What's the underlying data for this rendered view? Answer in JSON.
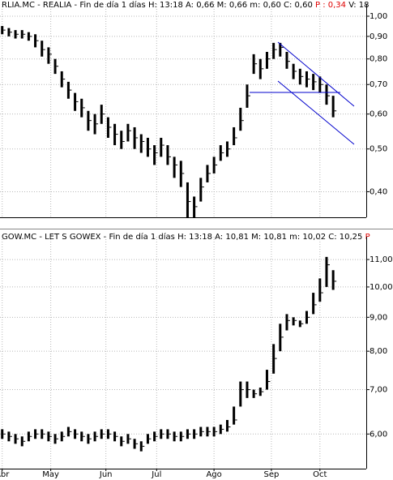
{
  "chart_data": [
    {
      "type": "ohlc",
      "header": "RLIA.MC - REALIA - Fin de día 1 días H: 13:18 A: 0,66 M: 0,66 m: 0,60 C: 0,60",
      "header_highlight": "P : 0,34",
      "header_tail": "V: 18",
      "log_scale": true,
      "grid": true,
      "color": "#000000",
      "highlight_color": "#e00000",
      "trend_color": "#0000cc",
      "show_xtick_labels": false,
      "x": [
        0,
        3,
        6,
        9,
        12,
        15,
        18,
        21,
        24,
        27,
        30,
        33,
        36,
        39,
        42,
        45,
        48,
        51,
        54,
        57,
        60,
        63,
        66,
        69,
        72,
        75,
        78,
        81,
        84,
        87,
        90,
        93,
        96,
        99,
        102,
        105,
        108,
        111,
        114,
        117,
        120,
        123,
        126,
        129,
        132,
        135,
        138,
        141,
        144,
        147,
        150
      ],
      "high": [
        0.95,
        0.94,
        0.93,
        0.93,
        0.92,
        0.91,
        0.88,
        0.85,
        0.8,
        0.75,
        0.71,
        0.67,
        0.65,
        0.61,
        0.6,
        0.63,
        0.59,
        0.57,
        0.55,
        0.57,
        0.56,
        0.54,
        0.53,
        0.51,
        0.53,
        0.51,
        0.48,
        0.47,
        0.42,
        0.39,
        0.43,
        0.46,
        0.48,
        0.51,
        0.52,
        0.56,
        0.62,
        0.7,
        0.82,
        0.8,
        0.83,
        0.87,
        0.87,
        0.83,
        0.78,
        0.76,
        0.75,
        0.74,
        0.73,
        0.7,
        0.66
      ],
      "low": [
        0.91,
        0.9,
        0.89,
        0.89,
        0.88,
        0.85,
        0.81,
        0.78,
        0.74,
        0.69,
        0.65,
        0.61,
        0.59,
        0.55,
        0.54,
        0.57,
        0.53,
        0.51,
        0.5,
        0.52,
        0.5,
        0.49,
        0.48,
        0.46,
        0.48,
        0.46,
        0.43,
        0.41,
        0.35,
        0.35,
        0.38,
        0.42,
        0.44,
        0.47,
        0.48,
        0.51,
        0.55,
        0.62,
        0.74,
        0.72,
        0.76,
        0.8,
        0.81,
        0.76,
        0.72,
        0.7,
        0.69,
        0.68,
        0.67,
        0.63,
        0.59
      ],
      "close": [
        0.93,
        0.92,
        0.91,
        0.91,
        0.9,
        0.88,
        0.84,
        0.82,
        0.77,
        0.72,
        0.68,
        0.64,
        0.62,
        0.58,
        0.57,
        0.6,
        0.56,
        0.54,
        0.52,
        0.55,
        0.53,
        0.52,
        0.5,
        0.49,
        0.51,
        0.48,
        0.46,
        0.44,
        0.38,
        0.37,
        0.41,
        0.44,
        0.46,
        0.49,
        0.5,
        0.53,
        0.58,
        0.66,
        0.78,
        0.76,
        0.8,
        0.84,
        0.85,
        0.79,
        0.75,
        0.73,
        0.72,
        0.71,
        0.7,
        0.66,
        0.61
      ],
      "xlim": [
        -1,
        165
      ],
      "xticks": [
        0,
        22,
        47,
        70,
        96,
        122,
        144
      ],
      "ylim": [
        0.35,
        1.03
      ],
      "yticks": [
        {
          "value": 1.0,
          "label": "1,00"
        },
        {
          "value": 0.9,
          "label": "0,90"
        },
        {
          "value": 0.8,
          "label": "0,80"
        },
        {
          "value": 0.7,
          "label": "0,70"
        },
        {
          "value": 0.6,
          "label": "0,60"
        },
        {
          "value": 0.5,
          "label": "0,50"
        },
        {
          "value": 0.4,
          "label": "0,40"
        }
      ]
    },
    {
      "type": "ohlc",
      "header": "GOW.MC - LET S GOWEX - Fin de día 1 días H: 13:18 A: 10,81 M: 10,81 m: 10,02 C: 10,25",
      "header_highlight": "P",
      "log_scale": true,
      "grid": true,
      "color": "#000000",
      "highlight_color": "#e00000",
      "show_xtick_labels": true,
      "x": [
        0,
        3,
        6,
        9,
        12,
        15,
        18,
        21,
        24,
        27,
        30,
        33,
        36,
        39,
        42,
        45,
        48,
        51,
        54,
        57,
        60,
        63,
        66,
        69,
        72,
        75,
        78,
        81,
        84,
        87,
        90,
        93,
        96,
        99,
        102,
        105,
        108,
        111,
        114,
        117,
        120,
        123,
        126,
        129,
        132,
        135,
        138,
        141,
        144,
        147,
        150
      ],
      "high": [
        6.1,
        6.05,
        6.0,
        5.95,
        6.05,
        6.1,
        6.1,
        6.05,
        6.0,
        6.05,
        6.15,
        6.1,
        6.05,
        6.0,
        6.05,
        6.1,
        6.1,
        6.05,
        5.95,
        6.0,
        5.9,
        5.85,
        6.0,
        6.05,
        6.1,
        6.1,
        6.05,
        6.05,
        6.1,
        6.1,
        6.15,
        6.15,
        6.15,
        6.2,
        6.3,
        6.6,
        7.2,
        7.2,
        7.0,
        7.05,
        7.5,
        8.2,
        8.8,
        9.1,
        9.0,
        8.9,
        9.2,
        9.8,
        10.3,
        11.1,
        10.6
      ],
      "low": [
        5.9,
        5.85,
        5.8,
        5.75,
        5.85,
        5.9,
        5.9,
        5.85,
        5.8,
        5.85,
        5.95,
        5.9,
        5.85,
        5.8,
        5.85,
        5.9,
        5.9,
        5.85,
        5.75,
        5.8,
        5.7,
        5.65,
        5.8,
        5.85,
        5.9,
        5.9,
        5.85,
        5.85,
        5.9,
        5.9,
        5.95,
        5.95,
        5.95,
        6.0,
        6.05,
        6.2,
        6.6,
        6.8,
        6.8,
        6.85,
        7.0,
        7.4,
        8.0,
        8.6,
        8.75,
        8.7,
        8.8,
        9.1,
        9.5,
        10.0,
        9.9
      ],
      "close": [
        6.0,
        5.95,
        5.9,
        5.85,
        5.95,
        6.0,
        6.0,
        5.95,
        5.9,
        5.95,
        6.05,
        6.0,
        5.95,
        5.9,
        5.95,
        6.0,
        6.0,
        5.95,
        5.85,
        5.9,
        5.8,
        5.75,
        5.9,
        5.95,
        6.0,
        6.0,
        5.95,
        5.95,
        6.0,
        6.0,
        6.05,
        6.05,
        6.05,
        6.1,
        6.15,
        6.3,
        7.0,
        7.0,
        6.9,
        6.95,
        7.2,
        7.8,
        8.4,
        8.9,
        8.9,
        8.8,
        9.0,
        9.4,
        9.8,
        10.8,
        10.2
      ],
      "xlim": [
        -1,
        165
      ],
      "xticks": [
        {
          "value": 0,
          "label": "Abr"
        },
        {
          "value": 22,
          "label": "May"
        },
        {
          "value": 47,
          "label": "Jun"
        },
        {
          "value": 70,
          "label": "Jul"
        },
        {
          "value": 96,
          "label": "Ago"
        },
        {
          "value": 122,
          "label": "Sep"
        },
        {
          "value": 144,
          "label": "Oct"
        }
      ],
      "ylim": [
        5.32,
        11.64
      ],
      "yticks": [
        {
          "value": 11,
          "label": "11,00"
        },
        {
          "value": 10,
          "label": "10,00"
        },
        {
          "value": 9,
          "label": "9,00"
        },
        {
          "value": 8,
          "label": "8,00"
        },
        {
          "value": 7,
          "label": "7,00"
        },
        {
          "value": 6,
          "label": "6,00"
        }
      ]
    }
  ]
}
